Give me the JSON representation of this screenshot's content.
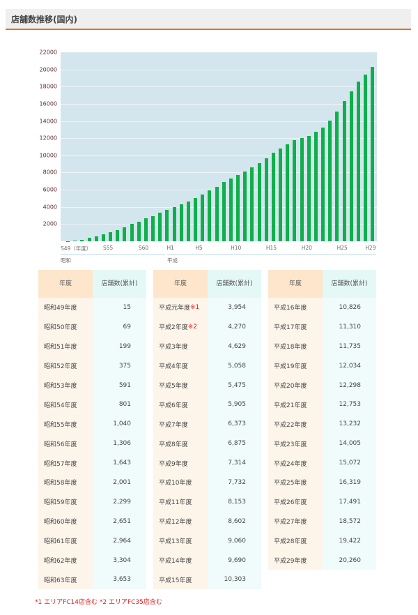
{
  "header": {
    "title": "店舗数推移(国内)",
    "accent_color": "#e8731e"
  },
  "chart_data": {
    "type": "bar",
    "title": "店舗数推移(国内)",
    "xlabel": "年度",
    "ylabel": "店舗数(累計)",
    "ylim": [
      0,
      22000
    ],
    "yticks": [
      2000,
      4000,
      6000,
      8000,
      10000,
      12000,
      14000,
      16000,
      18000,
      20000,
      22000
    ],
    "grid": true,
    "bar_color": "#0fb04b",
    "plot_background": "#d3e6ee",
    "xtick_labels": [
      "S49（年度）",
      "S55",
      "S60",
      "H1",
      "H5",
      "H10",
      "H15",
      "H20",
      "H25",
      "H29"
    ],
    "eras": [
      "昭和",
      "平成"
    ],
    "categories": [
      "S49",
      "S50",
      "S51",
      "S52",
      "S53",
      "S54",
      "S55",
      "S56",
      "S57",
      "S58",
      "S59",
      "S60",
      "S61",
      "S62",
      "S63",
      "H1",
      "H2",
      "H3",
      "H4",
      "H5",
      "H6",
      "H7",
      "H8",
      "H9",
      "H10",
      "H11",
      "H12",
      "H13",
      "H14",
      "H15",
      "H16",
      "H17",
      "H18",
      "H19",
      "H20",
      "H21",
      "H22",
      "H23",
      "H24",
      "H25",
      "H26",
      "H27",
      "H28",
      "H29"
    ],
    "values": [
      15,
      69,
      199,
      375,
      591,
      801,
      1040,
      1306,
      1643,
      2001,
      2299,
      2651,
      2964,
      3304,
      3653,
      3954,
      4270,
      4629,
      5058,
      5475,
      5905,
      6373,
      6875,
      7314,
      7732,
      8153,
      8602,
      9060,
      9690,
      10303,
      10826,
      11310,
      11735,
      12034,
      12298,
      12753,
      13232,
      14005,
      15072,
      16319,
      17491,
      18572,
      19422,
      20260
    ]
  },
  "table": {
    "header_year": "年度",
    "header_count_1": "店舗数",
    "header_count_2": "(累計)",
    "columns": [
      {
        "rows": [
          {
            "year": "昭和49年度",
            "mark": "",
            "count": "15"
          },
          {
            "year": "昭和50年度",
            "mark": "",
            "count": "69"
          },
          {
            "year": "昭和51年度",
            "mark": "",
            "count": "199"
          },
          {
            "year": "昭和52年度",
            "mark": "",
            "count": "375"
          },
          {
            "year": "昭和53年度",
            "mark": "",
            "count": "591"
          },
          {
            "year": "昭和54年度",
            "mark": "",
            "count": "801"
          },
          {
            "year": "昭和55年度",
            "mark": "",
            "count": "1,040"
          },
          {
            "year": "昭和56年度",
            "mark": "",
            "count": "1,306"
          },
          {
            "year": "昭和57年度",
            "mark": "",
            "count": "1,643"
          },
          {
            "year": "昭和58年度",
            "mark": "",
            "count": "2,001"
          },
          {
            "year": "昭和59年度",
            "mark": "",
            "count": "2,299"
          },
          {
            "year": "昭和60年度",
            "mark": "",
            "count": "2,651"
          },
          {
            "year": "昭和61年度",
            "mark": "",
            "count": "2,964"
          },
          {
            "year": "昭和62年度",
            "mark": "",
            "count": "3,304"
          },
          {
            "year": "昭和63年度",
            "mark": "",
            "count": "3,653"
          }
        ]
      },
      {
        "rows": [
          {
            "year": "平成元年度",
            "mark": "※1",
            "count": "3,954"
          },
          {
            "year": "平成2年度",
            "mark": "※2",
            "count": "4,270"
          },
          {
            "year": "平成3年度",
            "mark": "",
            "count": "4,629"
          },
          {
            "year": "平成4年度",
            "mark": "",
            "count": "5,058"
          },
          {
            "year": "平成5年度",
            "mark": "",
            "count": "5,475"
          },
          {
            "year": "平成6年度",
            "mark": "",
            "count": "5,905"
          },
          {
            "year": "平成7年度",
            "mark": "",
            "count": "6,373"
          },
          {
            "year": "平成8年度",
            "mark": "",
            "count": "6,875"
          },
          {
            "year": "平成9年度",
            "mark": "",
            "count": "7,314"
          },
          {
            "year": "平成10年度",
            "mark": "",
            "count": "7,732"
          },
          {
            "year": "平成11年度",
            "mark": "",
            "count": "8,153"
          },
          {
            "year": "平成12年度",
            "mark": "",
            "count": "8,602"
          },
          {
            "year": "平成13年度",
            "mark": "",
            "count": "9,060"
          },
          {
            "year": "平成14年度",
            "mark": "",
            "count": "9,690"
          },
          {
            "year": "平成15年度",
            "mark": "",
            "count": "10,303"
          }
        ]
      },
      {
        "rows": [
          {
            "year": "平成16年度",
            "mark": "",
            "count": "10,826"
          },
          {
            "year": "平成17年度",
            "mark": "",
            "count": "11,310"
          },
          {
            "year": "平成18年度",
            "mark": "",
            "count": "11,735"
          },
          {
            "year": "平成19年度",
            "mark": "",
            "count": "12,034"
          },
          {
            "year": "平成20年度",
            "mark": "",
            "count": "12,298"
          },
          {
            "year": "平成21年度",
            "mark": "",
            "count": "12,753"
          },
          {
            "year": "平成22年度",
            "mark": "",
            "count": "13,232"
          },
          {
            "year": "平成23年度",
            "mark": "",
            "count": "14,005"
          },
          {
            "year": "平成24年度",
            "mark": "",
            "count": "15,072"
          },
          {
            "year": "平成25年度",
            "mark": "",
            "count": "16,319"
          },
          {
            "year": "平成26年度",
            "mark": "",
            "count": "17,491"
          },
          {
            "year": "平成27年度",
            "mark": "",
            "count": "18,572"
          },
          {
            "year": "平成28年度",
            "mark": "",
            "count": "19,422"
          },
          {
            "year": "平成29年度",
            "mark": "",
            "count": "20,260"
          }
        ]
      }
    ]
  },
  "footnote": "*1 エリアFC14店含む *2 エリアFC35店含む"
}
